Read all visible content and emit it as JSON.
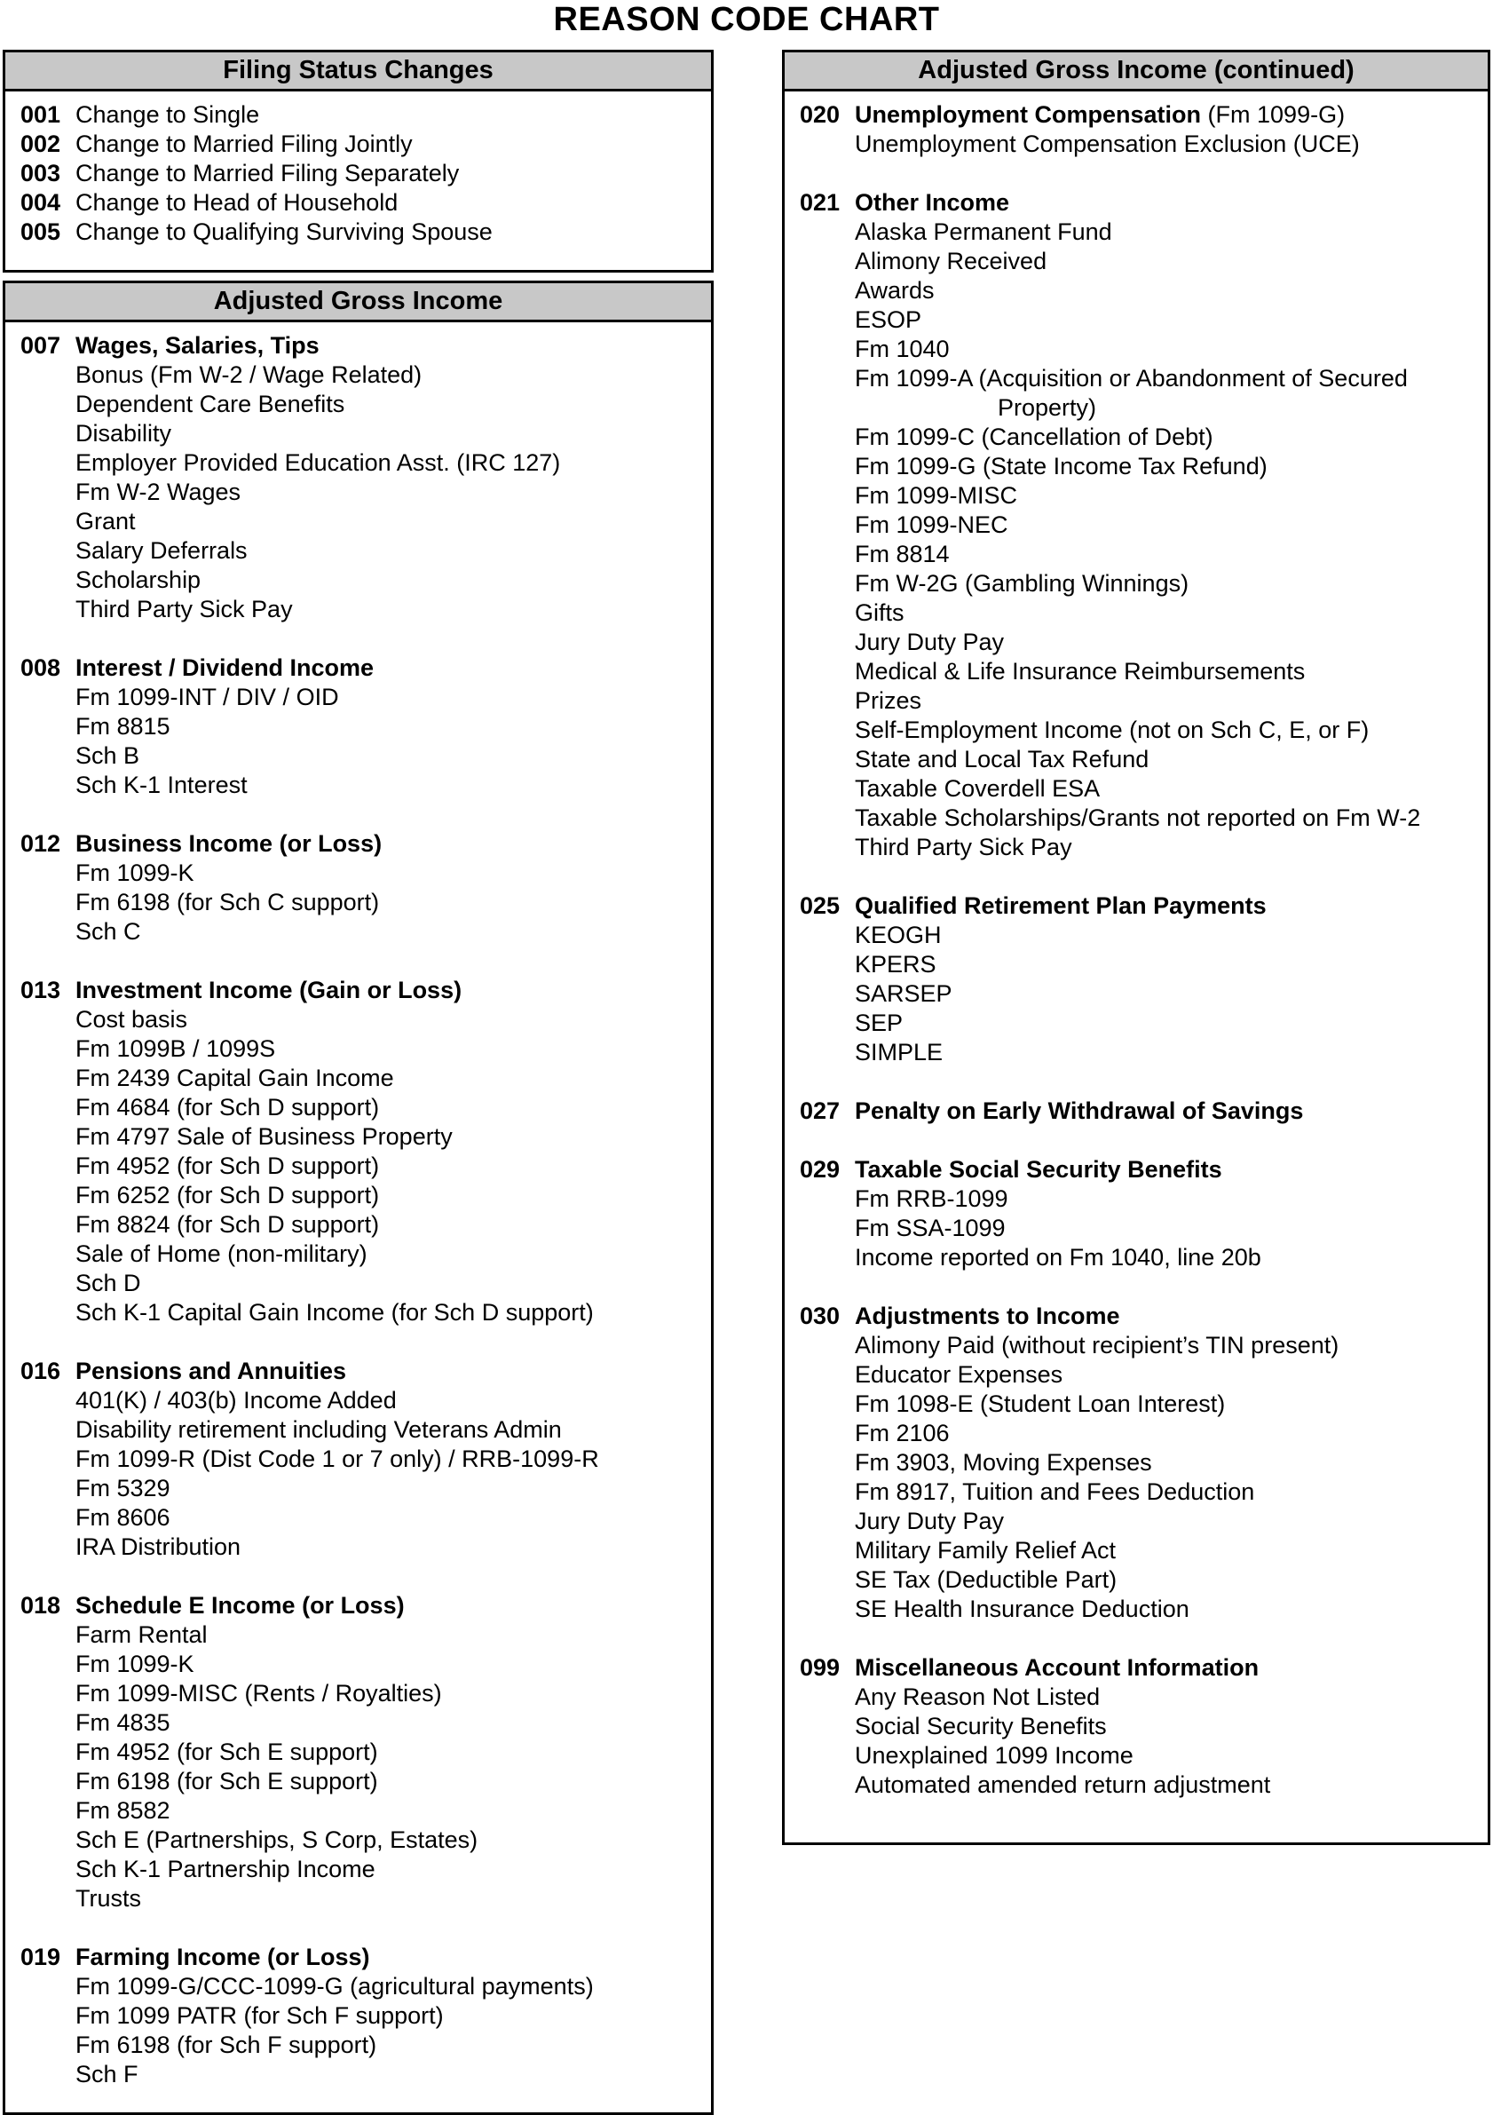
{
  "page_title": "REASON CODE CHART",
  "colors": {
    "header_bg": "#c8c8c8",
    "border": "#000000",
    "text": "#000000",
    "page_bg": "#ffffff"
  },
  "columns": [
    {
      "side": "left",
      "boxes": [
        {
          "header": "Filing Status Changes",
          "bold_titles": false,
          "compact": true,
          "sections": [
            {
              "code": "001",
              "title": "Change to Single",
              "items": []
            },
            {
              "code": "002",
              "title": "Change to Married Filing Jointly",
              "items": []
            },
            {
              "code": "003",
              "title": "Change to Married Filing Separately",
              "items": []
            },
            {
              "code": "004",
              "title": "Change to Head of Household",
              "items": []
            },
            {
              "code": "005",
              "title": "Change to Qualifying Surviving Spouse",
              "items": []
            }
          ]
        },
        {
          "header": "Adjusted Gross Income",
          "bold_titles": true,
          "compact": false,
          "sections": [
            {
              "code": "007",
              "title": "Wages, Salaries, Tips",
              "items": [
                "Bonus (Fm W-2 / Wage Related)",
                "Dependent Care Benefits",
                "Disability",
                "Employer Provided Education Asst. (IRC 127)",
                "Fm W-2 Wages",
                "Grant",
                "Salary Deferrals",
                "Scholarship",
                "Third Party Sick Pay"
              ]
            },
            {
              "code": "008",
              "title": "Interest / Dividend Income",
              "items": [
                "Fm 1099-INT / DIV / OID",
                "Fm 8815",
                "Sch B",
                "Sch K-1 Interest"
              ]
            },
            {
              "code": "012",
              "title": "Business Income (or Loss)",
              "items": [
                "Fm 1099-K",
                "Fm 6198 (for Sch C support)",
                "Sch C"
              ]
            },
            {
              "code": "013",
              "title": "Investment Income (Gain or Loss)",
              "items": [
                "Cost basis",
                "Fm 1099B / 1099S",
                "Fm 2439 Capital Gain Income",
                "Fm 4684 (for Sch D support)",
                "Fm 4797 Sale of Business Property",
                "Fm 4952 (for Sch D support)",
                "Fm 6252 (for Sch D support)",
                "Fm 8824 (for Sch D support)",
                "Sale of Home (non-military)",
                "Sch D",
                "Sch K-1 Capital Gain Income (for Sch D support)"
              ]
            },
            {
              "code": "016",
              "title": "Pensions and Annuities",
              "items": [
                "401(K) / 403(b) Income Added",
                "Disability retirement including Veterans Admin",
                "Fm 1099-R (Dist Code 1 or 7 only) / RRB-1099-R",
                "Fm 5329",
                "Fm 8606",
                "IRA Distribution"
              ]
            },
            {
              "code": "018",
              "title": "Schedule E Income (or Loss)",
              "items": [
                "Farm Rental",
                "Fm 1099-K",
                "Fm 1099-MISC (Rents / Royalties)",
                "Fm 4835",
                "Fm 4952 (for Sch E support)",
                "Fm 6198 (for Sch E support)",
                "Fm 8582",
                "Sch E (Partnerships, S Corp, Estates)",
                "Sch K-1 Partnership Income",
                "Trusts"
              ]
            },
            {
              "code": "019",
              "title": "Farming Income (or Loss)",
              "items": [
                "Fm 1099-G/CCC-1099-G (agricultural payments)",
                "Fm 1099 PATR (for Sch F support)",
                "Fm 6198 (for Sch F support)",
                "Sch F"
              ]
            }
          ]
        }
      ]
    },
    {
      "side": "right",
      "boxes": [
        {
          "header": "Adjusted Gross Income (continued)",
          "bold_titles": true,
          "compact": false,
          "sections": [
            {
              "code": "020",
              "title": "Unemployment Compensation",
              "suffix": "(Fm 1099-G)",
              "items": [
                "Unemployment Compensation Exclusion (UCE)"
              ]
            },
            {
              "code": "021",
              "title": "Other Income",
              "items": [
                "Alaska Permanent Fund",
                "Alimony Received",
                "Awards",
                "ESOP",
                "Fm 1040",
                "Fm 1099-A (Acquisition or Abandonment of Secured",
                {
                  "text": "Property)",
                  "cont": true
                },
                "Fm 1099-C (Cancellation of Debt)",
                "Fm 1099-G (State Income Tax Refund)",
                "Fm 1099-MISC",
                "Fm 1099-NEC",
                "Fm 8814",
                "Fm W-2G (Gambling Winnings)",
                "Gifts",
                "Jury Duty Pay",
                "Medical & Life Insurance Reimbursements",
                "Prizes",
                "Self-Employment Income (not on Sch C, E, or F)",
                "State and Local Tax Refund",
                "Taxable Coverdell ESA",
                "Taxable Scholarships/Grants not reported on Fm W-2",
                "Third Party Sick Pay"
              ]
            },
            {
              "code": "025",
              "title": "Qualified Retirement Plan Payments",
              "items": [
                "KEOGH",
                "KPERS",
                "SARSEP",
                "SEP",
                "SIMPLE"
              ]
            },
            {
              "code": "027",
              "title": "Penalty on Early Withdrawal of Savings",
              "items": []
            },
            {
              "code": "029",
              "title": "Taxable Social Security Benefits",
              "items": [
                "Fm RRB-1099",
                "Fm SSA-1099",
                "Income reported on Fm 1040, line 20b"
              ]
            },
            {
              "code": "030",
              "title": "Adjustments to Income",
              "items": [
                "Alimony Paid (without recipient’s TIN present)",
                "Educator Expenses",
                "Fm 1098-E (Student Loan Interest)",
                "Fm 2106",
                "Fm 3903, Moving Expenses",
                "Fm 8917, Tuition and Fees Deduction",
                "Jury Duty Pay",
                "Military Family Relief Act",
                "SE Tax (Deductible Part)",
                "SE Health Insurance Deduction"
              ]
            },
            {
              "code": "099",
              "title": "Miscellaneous Account Information",
              "items": [
                "Any Reason Not Listed",
                "Social Security Benefits",
                "Unexplained 1099 Income",
                "Automated amended return adjustment"
              ]
            }
          ]
        }
      ]
    }
  ]
}
